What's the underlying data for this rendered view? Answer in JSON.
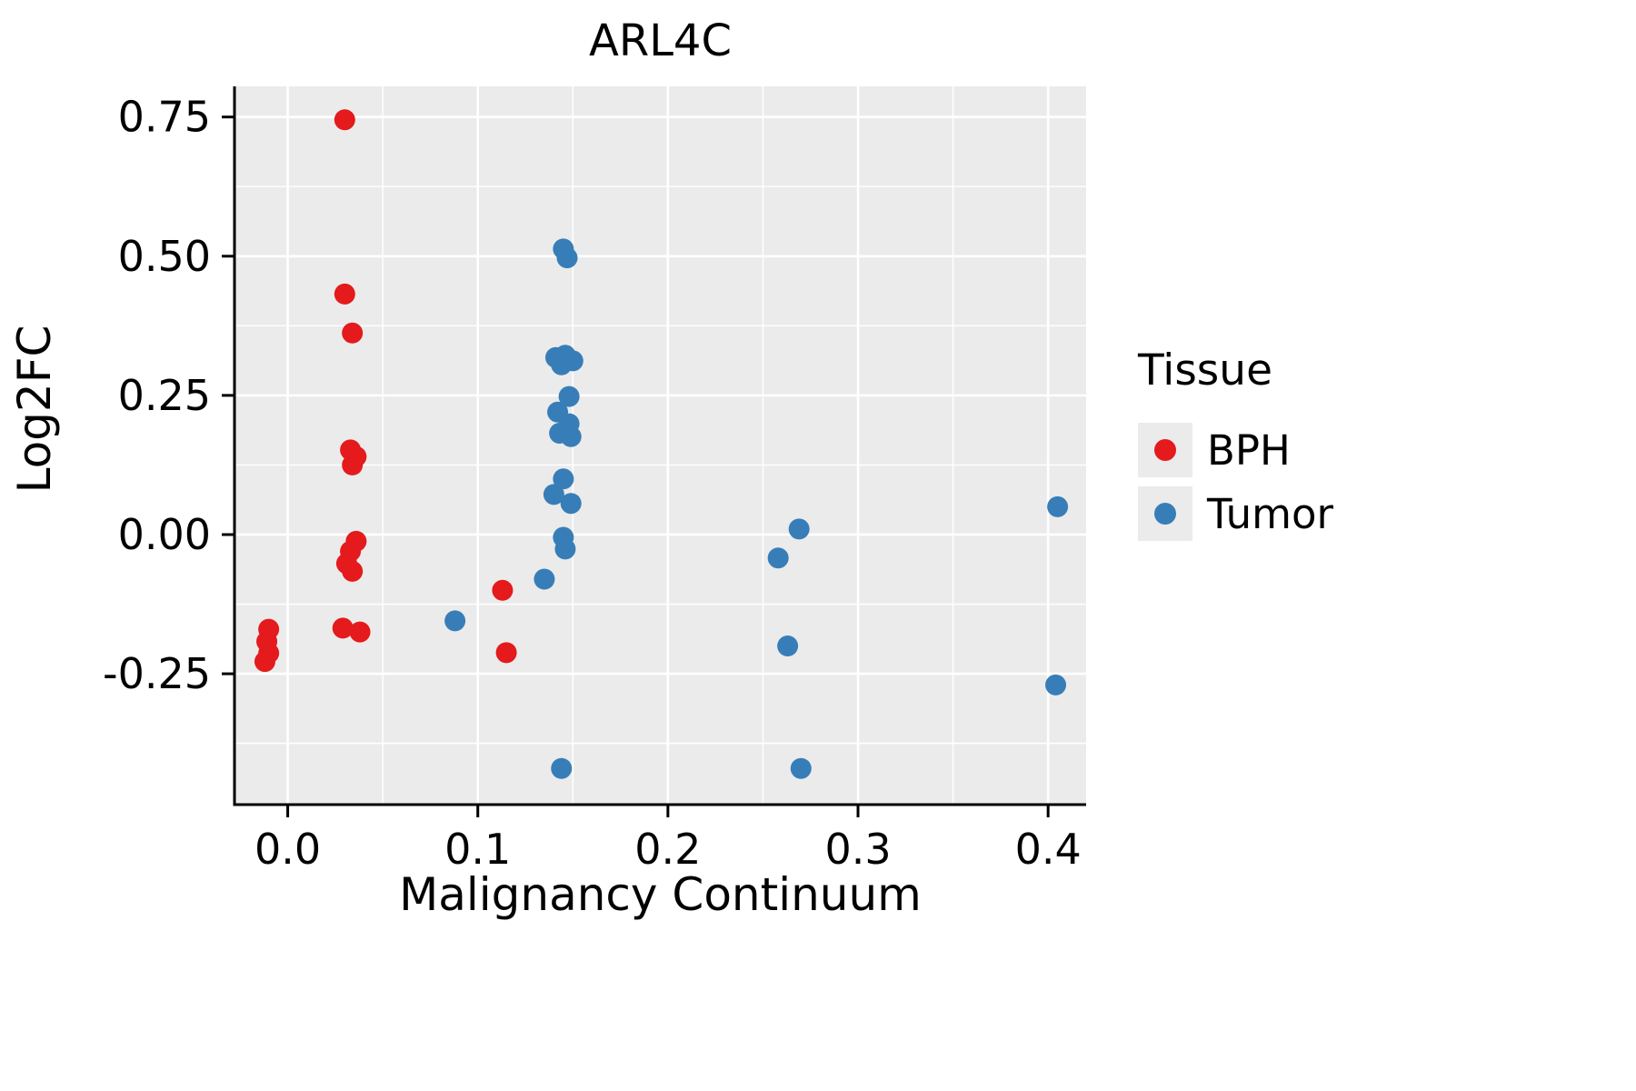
{
  "title": "ARL4C",
  "axes": {
    "x_label": "Malignancy Continuum",
    "y_label": "Log2FC"
  },
  "legend": {
    "title": "Tissue",
    "items": [
      {
        "label": "BPH",
        "color": "#E41A1C"
      },
      {
        "label": "Tumor",
        "color": "#377EB8"
      }
    ]
  },
  "chart_data": {
    "type": "scatter",
    "title": "ARL4C",
    "xlabel": "Malignancy Continuum",
    "ylabel": "Log2FC",
    "xlim": [
      -0.028,
      0.42
    ],
    "ylim": [
      -0.485,
      0.805
    ],
    "x_ticks": [
      0.0,
      0.1,
      0.2,
      0.3,
      0.4
    ],
    "x_tick_labels": [
      "0.0",
      "0.1",
      "0.2",
      "0.3",
      "0.4"
    ],
    "x_minor_ticks": [
      0.05,
      0.15,
      0.25,
      0.35
    ],
    "y_ticks": [
      0.75,
      0.5,
      0.25,
      0.0,
      -0.25
    ],
    "y_tick_labels": [
      "0.75",
      "0.50",
      "0.25",
      "0.00",
      "-0.25"
    ],
    "y_minor_ticks": [
      0.625,
      0.375,
      0.125,
      -0.125,
      -0.375
    ],
    "panel_bg": "#EBEBEB",
    "grid_color": "#FFFFFF",
    "legend_position": "right",
    "series": [
      {
        "name": "BPH",
        "color": "#E41A1C",
        "points": [
          [
            -0.01,
            -0.17
          ],
          [
            -0.011,
            -0.192
          ],
          [
            -0.01,
            -0.213
          ],
          [
            -0.012,
            -0.228
          ],
          [
            0.03,
            0.745
          ],
          [
            0.03,
            0.432
          ],
          [
            0.034,
            0.362
          ],
          [
            0.033,
            0.152
          ],
          [
            0.036,
            0.14
          ],
          [
            0.034,
            0.125
          ],
          [
            0.036,
            -0.012
          ],
          [
            0.033,
            -0.03
          ],
          [
            0.031,
            -0.052
          ],
          [
            0.034,
            -0.066
          ],
          [
            0.029,
            -0.168
          ],
          [
            0.038,
            -0.175
          ],
          [
            0.113,
            -0.1
          ],
          [
            0.115,
            -0.212
          ]
        ]
      },
      {
        "name": "Tumor",
        "color": "#377EB8",
        "points": [
          [
            0.088,
            -0.155
          ],
          [
            0.135,
            -0.08
          ],
          [
            0.145,
            0.513
          ],
          [
            0.147,
            0.497
          ],
          [
            0.141,
            0.318
          ],
          [
            0.146,
            0.322
          ],
          [
            0.144,
            0.305
          ],
          [
            0.15,
            0.312
          ],
          [
            0.148,
            0.248
          ],
          [
            0.142,
            0.22
          ],
          [
            0.148,
            0.199
          ],
          [
            0.143,
            0.182
          ],
          [
            0.149,
            0.176
          ],
          [
            0.145,
            0.1
          ],
          [
            0.14,
            0.072
          ],
          [
            0.149,
            0.056
          ],
          [
            0.145,
            -0.005
          ],
          [
            0.146,
            -0.026
          ],
          [
            0.144,
            -0.42
          ],
          [
            0.258,
            -0.042
          ],
          [
            0.269,
            0.01
          ],
          [
            0.263,
            -0.2
          ],
          [
            0.27,
            -0.42
          ],
          [
            0.405,
            0.05
          ],
          [
            0.404,
            -0.27
          ]
        ]
      }
    ]
  }
}
